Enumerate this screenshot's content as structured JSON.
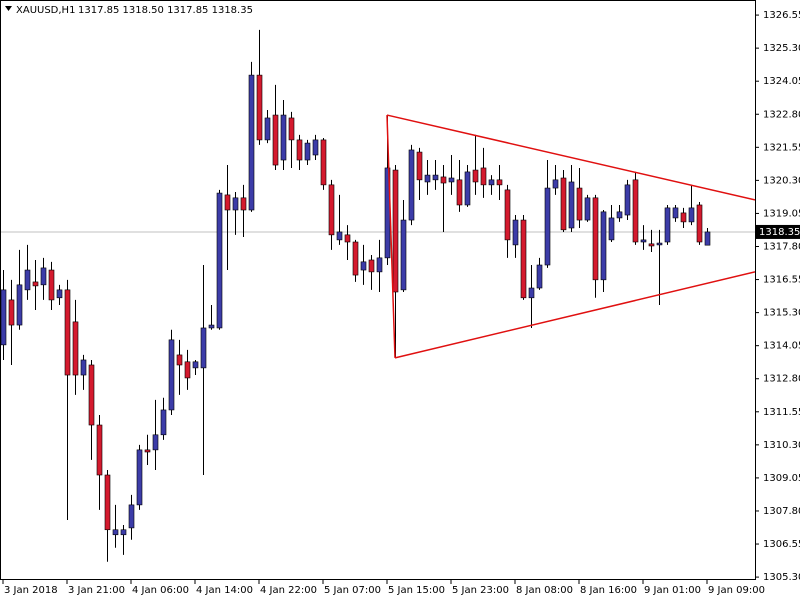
{
  "chart_data": {
    "type": "candlestick",
    "title": "XAUUSD,H1",
    "legend_text": "1317.85 1318.50 1317.85 1318.35",
    "categories": [
      "3 Jan 2018",
      null,
      null,
      null,
      null,
      null,
      null,
      null,
      "3 Jan 21:00",
      null,
      null,
      null,
      null,
      null,
      null,
      null,
      "4 Jan 06:00",
      null,
      null,
      null,
      null,
      null,
      null,
      null,
      "4 Jan 14:00",
      null,
      null,
      null,
      null,
      null,
      null,
      null,
      "4 Jan 22:00",
      null,
      null,
      null,
      null,
      null,
      null,
      null,
      "5 Jan 07:00",
      null,
      null,
      null,
      null,
      null,
      null,
      null,
      "5 Jan 15:00",
      null,
      null,
      null,
      null,
      null,
      null,
      null,
      "5 Jan 23:00",
      null,
      null,
      null,
      null,
      null,
      null,
      null,
      "8 Jan 08:00",
      null,
      null,
      null,
      null,
      null,
      null,
      null,
      "8 Jan 16:00",
      null,
      null,
      null,
      null,
      null,
      null,
      null,
      "9 Jan 01:00",
      null,
      null,
      null,
      null,
      null,
      null,
      null,
      "9 Jan 09:00"
    ],
    "ohlc": [
      [
        1314.08,
        1316.91,
        1313.51,
        1316.16
      ],
      [
        1315.78,
        1316.54,
        1313.32,
        1314.83
      ],
      [
        1314.83,
        1317.67,
        1314.65,
        1316.35
      ],
      [
        1316.16,
        1317.86,
        1315.78,
        1316.91
      ],
      [
        1316.46,
        1317.29,
        1315.4,
        1316.31
      ],
      [
        1316.35,
        1317.37,
        1315.78,
        1316.99
      ],
      [
        1316.91,
        1317.22,
        1315.4,
        1315.78
      ],
      [
        1315.86,
        1316.35,
        1315.59,
        1316.16
      ],
      [
        1316.16,
        1316.54,
        1307.46,
        1312.94
      ],
      [
        1314.95,
        1315.78,
        1312.19,
        1312.94
      ],
      [
        1312.94,
        1313.7,
        1312.38,
        1313.51
      ],
      [
        1313.32,
        1313.51,
        1309.73,
        1311.05
      ],
      [
        1311.05,
        1311.43,
        1307.84,
        1309.16
      ],
      [
        1309.16,
        1309.35,
        1305.88,
        1307.09
      ],
      [
        1306.9,
        1308.03,
        1306.41,
        1307.09
      ],
      [
        1306.9,
        1307.27,
        1306.14,
        1307.09
      ],
      [
        1307.16,
        1308.41,
        1306.71,
        1308.03
      ],
      [
        1308.03,
        1310.3,
        1307.84,
        1310.11
      ],
      [
        1310.11,
        1310.68,
        1309.54,
        1310.03
      ],
      [
        1310.11,
        1312.0,
        1309.35,
        1310.68
      ],
      [
        1310.68,
        1312.08,
        1310.49,
        1311.62
      ],
      [
        1311.62,
        1314.65,
        1311.43,
        1314.27
      ],
      [
        1313.7,
        1314.27,
        1312.19,
        1313.32
      ],
      [
        1313.44,
        1313.89,
        1312.38,
        1312.83
      ],
      [
        1313.21,
        1313.51,
        1312.94,
        1313.44
      ],
      [
        1313.21,
        1317.1,
        1309.16,
        1314.72
      ],
      [
        1314.72,
        1315.59,
        1314.65,
        1314.83
      ],
      [
        1314.72,
        1319.94,
        1314.65,
        1319.82
      ],
      [
        1319.75,
        1320.88,
        1316.91,
        1319.18
      ],
      [
        1319.18,
        1319.86,
        1318.24,
        1319.64
      ],
      [
        1319.64,
        1320.13,
        1318.16,
        1319.18
      ],
      [
        1319.18,
        1324.78,
        1319.11,
        1324.28
      ],
      [
        1324.28,
        1325.99,
        1321.64,
        1321.83
      ],
      [
        1321.83,
        1322.96,
        1321.71,
        1322.66
      ],
      [
        1322.77,
        1323.91,
        1320.69,
        1320.88
      ],
      [
        1321.07,
        1323.34,
        1320.69,
        1322.77
      ],
      [
        1322.66,
        1322.89,
        1320.77,
        1321.83
      ],
      [
        1321.83,
        1322.02,
        1320.69,
        1321.07
      ],
      [
        1321.07,
        1321.83,
        1320.88,
        1321.71
      ],
      [
        1321.26,
        1322.02,
        1321.07,
        1321.83
      ],
      [
        1321.83,
        1321.9,
        1319.94,
        1320.13
      ],
      [
        1320.13,
        1320.32,
        1317.67,
        1318.24
      ],
      [
        1318.05,
        1319.75,
        1317.86,
        1318.35
      ],
      [
        1318.24,
        1318.61,
        1317.29,
        1317.97
      ],
      [
        1317.97,
        1318.05,
        1316.46,
        1316.72
      ],
      [
        1316.91,
        1317.86,
        1316.35,
        1317.22
      ],
      [
        1317.29,
        1317.48,
        1316.16,
        1316.84
      ],
      [
        1316.84,
        1318.05,
        1316.08,
        1317.37
      ],
      [
        1317.37,
        1322.77,
        1317.1,
        1320.77
      ],
      [
        1320.69,
        1320.88,
        1313.59,
        1316.08
      ],
      [
        1316.16,
        1319.56,
        1316.08,
        1318.8
      ],
      [
        1318.8,
        1321.64,
        1318.61,
        1321.45
      ],
      [
        1321.37,
        1321.53,
        1319.56,
        1320.32
      ],
      [
        1320.24,
        1321.07,
        1319.75,
        1320.5
      ],
      [
        1320.32,
        1321.07,
        1319.94,
        1320.5
      ],
      [
        1320.43,
        1320.88,
        1318.35,
        1320.2
      ],
      [
        1320.24,
        1321.26,
        1319.75,
        1320.39
      ],
      [
        1320.32,
        1321.07,
        1319.11,
        1319.37
      ],
      [
        1319.37,
        1320.88,
        1319.3,
        1320.62
      ],
      [
        1320.69,
        1322.02,
        1319.75,
        1320.24
      ],
      [
        1320.77,
        1321.53,
        1319.64,
        1320.13
      ],
      [
        1320.13,
        1320.5,
        1319.75,
        1320.32
      ],
      [
        1320.32,
        1320.88,
        1319.56,
        1320.13
      ],
      [
        1319.94,
        1320.13,
        1317.37,
        1318.05
      ],
      [
        1317.86,
        1318.99,
        1317.37,
        1318.8
      ],
      [
        1318.8,
        1318.99,
        1315.78,
        1315.86
      ],
      [
        1315.86,
        1317.1,
        1314.72,
        1316.23
      ],
      [
        1316.23,
        1317.37,
        1316.16,
        1317.1
      ],
      [
        1317.1,
        1321.07,
        1316.99,
        1320.01
      ],
      [
        1320.01,
        1320.88,
        1319.75,
        1320.32
      ],
      [
        1320.39,
        1320.69,
        1318.35,
        1318.43
      ],
      [
        1318.5,
        1320.88,
        1318.35,
        1320.24
      ],
      [
        1320.01,
        1320.77,
        1318.5,
        1318.8
      ],
      [
        1318.8,
        1319.75,
        1318.73,
        1319.64
      ],
      [
        1319.64,
        1319.75,
        1315.86,
        1316.54
      ],
      [
        1316.54,
        1319.18,
        1316.08,
        1319.11
      ],
      [
        1318.05,
        1319.37,
        1317.97,
        1318.88
      ],
      [
        1318.88,
        1319.37,
        1318.73,
        1319.11
      ],
      [
        1318.99,
        1320.32,
        1318.8,
        1320.13
      ],
      [
        1320.32,
        1320.62,
        1317.86,
        1317.97
      ],
      [
        1317.97,
        1318.61,
        1317.67,
        1318.05
      ],
      [
        1317.9,
        1318.43,
        1317.59,
        1317.82
      ],
      [
        1317.86,
        1318.43,
        1315.59,
        1317.93
      ],
      [
        1317.97,
        1319.37,
        1317.86,
        1319.26
      ],
      [
        1318.88,
        1319.37,
        1318.73,
        1319.26
      ],
      [
        1319.07,
        1319.26,
        1318.5,
        1318.73
      ],
      [
        1318.73,
        1320.13,
        1318.61,
        1319.26
      ],
      [
        1319.37,
        1319.48,
        1317.86,
        1317.97
      ],
      [
        1317.85,
        1318.5,
        1317.85,
        1318.35
      ]
    ],
    "up_color": "#3c3ca8",
    "down_color": "#d41a2e",
    "ylim": [
      1305.19,
      1327.12
    ],
    "yticks": [
      1326.55,
      {
        "value": 1325.3,
        "label": "1325.30"
      },
      1324.05,
      {
        "value": 1322.8,
        "label": "1322.80"
      },
      1321.55,
      {
        "value": 1320.3,
        "label": "1320.30"
      },
      1319.05,
      {
        "value": 1317.8,
        "label": "1317.80"
      },
      1316.55,
      {
        "value": 1315.3,
        "label": "1315.30"
      },
      1314.05,
      {
        "value": 1312.8,
        "label": "1312.80"
      },
      1311.55,
      {
        "value": 1310.3,
        "label": "1310.30"
      },
      1309.05,
      {
        "value": 1307.8,
        "label": "1307.80"
      },
      1306.55,
      {
        "value": 1305.3,
        "label": "1305.30"
      }
    ],
    "price_line": 1318.35,
    "trendlines": [
      {
        "x": [
          48,
          94
        ],
        "y": [
          1322.77,
          1319.56
        ]
      },
      {
        "x": [
          49,
          94
        ],
        "y": [
          1313.59,
          1316.84
        ]
      },
      {
        "x": [
          48,
          49
        ],
        "y": [
          1322.77,
          1313.59
        ]
      }
    ],
    "trendline_color": "#e01010",
    "grid": false
  }
}
